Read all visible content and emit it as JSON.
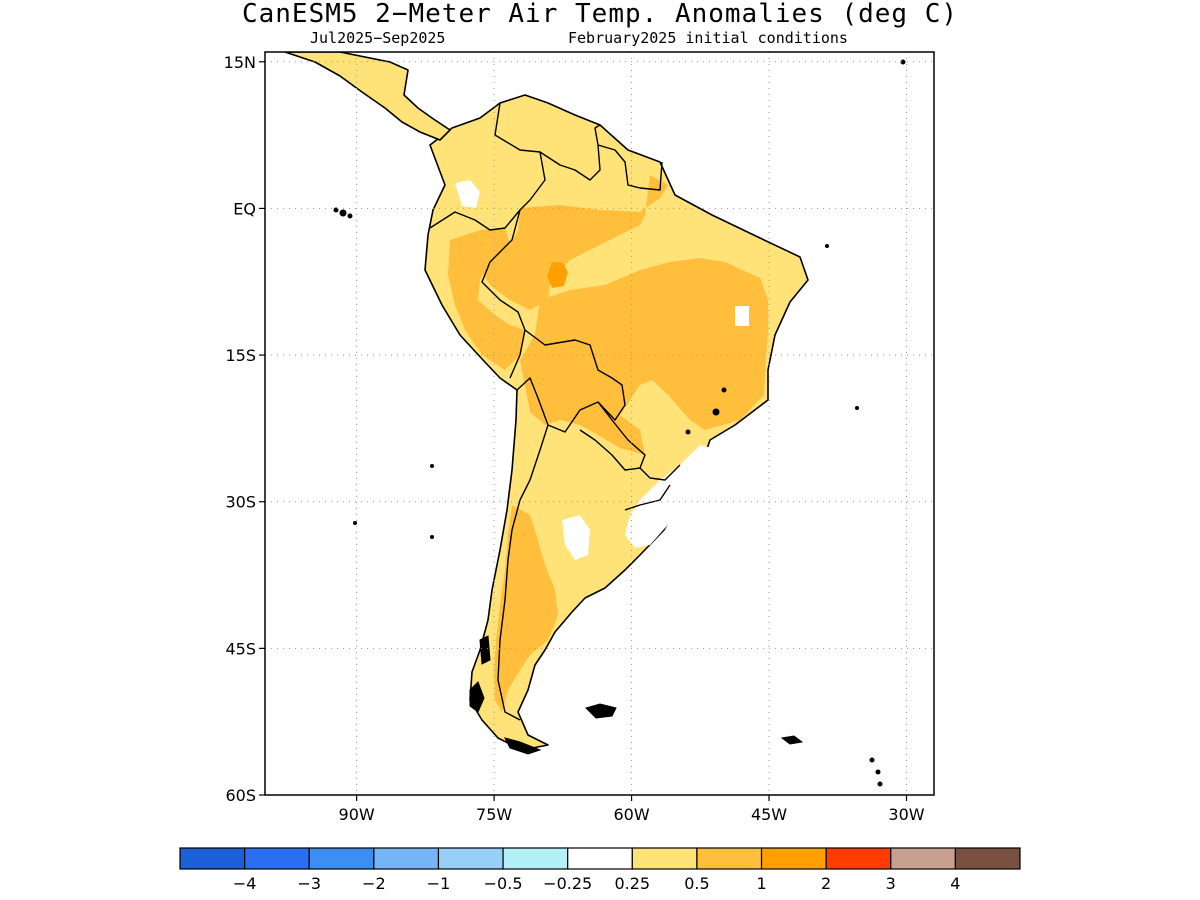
{
  "title": "CanESM5 2−Meter Air Temp. Anomalies (deg C)",
  "subtitle_period": "Jul2025−Sep2025",
  "subtitle_init": "February2025 initial conditions",
  "map": {
    "lon_range": [
      -100,
      -27
    ],
    "lat_range": [
      -60,
      16
    ],
    "lat_ticks": [
      {
        "lat": 15,
        "label": "15N"
      },
      {
        "lat": 0,
        "label": "EQ"
      },
      {
        "lat": -15,
        "label": "15S"
      },
      {
        "lat": -30,
        "label": "30S"
      },
      {
        "lat": -45,
        "label": "45S"
      },
      {
        "lat": -60,
        "label": "60S"
      }
    ],
    "lon_ticks": [
      {
        "lon": -90,
        "label": "90W"
      },
      {
        "lon": -75,
        "label": "75W"
      },
      {
        "lon": -60,
        "label": "60W"
      },
      {
        "lon": -45,
        "label": "45W"
      },
      {
        "lon": -30,
        "label": "30W"
      }
    ],
    "gridlines": "dotted"
  },
  "colorbar": {
    "colors": [
      "#1c60d8",
      "#2a6ff0",
      "#3c8ef0",
      "#76b4f8",
      "#96d0f8",
      "#b4f0f8",
      "#ffffff",
      "#ffe278",
      "#ffbe3c",
      "#ffa000",
      "#ff3c00",
      "#c8a090",
      "#7a5041"
    ],
    "labels": [
      "−4",
      "−3",
      "−2",
      "−1",
      "−0.5",
      "−0.25",
      "0.25",
      "0.5",
      "1",
      "2",
      "3",
      "4"
    ]
  },
  "chart_data": {
    "type": "heatmap",
    "variable": "2-meter air temperature anomaly",
    "units": "deg C",
    "region_summary": [
      {
        "region": "Most of South America",
        "anomaly_range": "0.25 to 0.5"
      },
      {
        "region": "Central and eastern Brazil",
        "anomaly_range": "0.5 to 1"
      },
      {
        "region": "Western Amazon / Peru-Brazil border",
        "anomaly_range": "0.5 to 1"
      },
      {
        "region": "Small patch near 62W 7S",
        "anomaly_range": "1 to 2"
      },
      {
        "region": "Bolivia / Paraguay",
        "anomaly_range": "0.5 to 1"
      },
      {
        "region": "Southern Brazil / Uruguay / NE Argentina",
        "anomaly_range": "-0.25 to 0.25"
      },
      {
        "region": "Southern Patagonian Andes",
        "anomaly_range": "0.5 to 1"
      }
    ]
  }
}
